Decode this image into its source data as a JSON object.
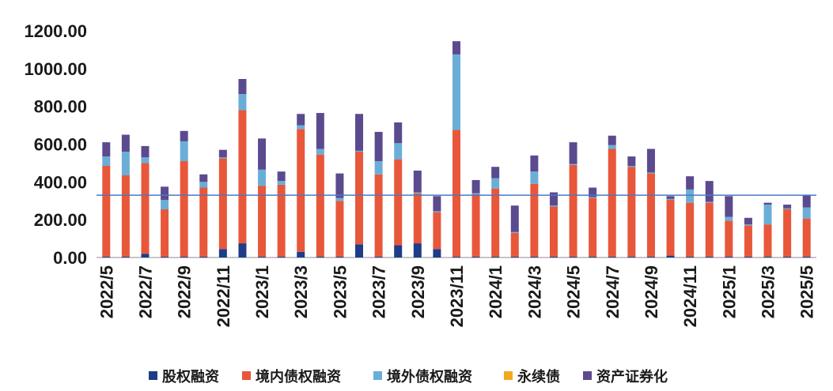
{
  "chart_data": {
    "type": "bar",
    "stacked": true,
    "categories": [
      "2022/5",
      "2022/6",
      "2022/7",
      "2022/8",
      "2022/9",
      "2022/10",
      "2022/11",
      "2022/12",
      "2023/1",
      "2023/2",
      "2023/3",
      "2023/4",
      "2023/5",
      "2023/6",
      "2023/7",
      "2023/8",
      "2023/9",
      "2023/10",
      "2023/11",
      "2023/12",
      "2024/1",
      "2024/2",
      "2024/3",
      "2024/4",
      "2024/5",
      "2024/6",
      "2024/7",
      "2024/8",
      "2024/9",
      "2024/10",
      "2024/11",
      "2024/12",
      "2025/1",
      "2025/2",
      "2025/3",
      "2025/4",
      "2025/5"
    ],
    "x_tick_labels": [
      "2022/5",
      "2022/7",
      "2022/9",
      "2022/11",
      "2023/1",
      "2023/3",
      "2023/5",
      "2023/7",
      "2023/9",
      "2023/11",
      "2024/1",
      "2024/3",
      "2024/5",
      "2024/7",
      "2024/9",
      "2024/11",
      "2025/1",
      "2025/3",
      "2025/5"
    ],
    "series": [
      {
        "name": "股权融资",
        "color": "#1f3c88",
        "values": [
          5,
          5,
          20,
          5,
          5,
          5,
          45,
          75,
          5,
          5,
          30,
          5,
          5,
          70,
          5,
          65,
          75,
          45,
          5,
          5,
          5,
          5,
          5,
          5,
          5,
          5,
          5,
          5,
          5,
          10,
          5,
          5,
          5,
          5,
          5,
          5,
          5
        ]
      },
      {
        "name": "境内债权融资",
        "color": "#e8573a",
        "values": [
          480,
          430,
          480,
          250,
          505,
          365,
          480,
          705,
          375,
          380,
          650,
          540,
          295,
          490,
          435,
          455,
          265,
          195,
          670,
          330,
          360,
          125,
          385,
          265,
          485,
          310,
          570,
          475,
          440,
          295,
          285,
          285,
          190,
          165,
          170,
          250,
          200
        ]
      },
      {
        "name": "境外债权融资",
        "color": "#6aaed8",
        "values": [
          50,
          125,
          30,
          50,
          105,
          30,
          5,
          85,
          85,
          20,
          20,
          30,
          15,
          5,
          70,
          85,
          5,
          5,
          400,
          5,
          55,
          5,
          65,
          5,
          5,
          5,
          20,
          5,
          5,
          5,
          70,
          5,
          20,
          5,
          105,
          5,
          60
        ]
      },
      {
        "name": "永续债",
        "color": "#f2a91f",
        "values": [
          0,
          0,
          0,
          0,
          0,
          0,
          0,
          0,
          0,
          0,
          0,
          0,
          0,
          0,
          0,
          0,
          0,
          0,
          0,
          0,
          0,
          0,
          0,
          0,
          0,
          0,
          0,
          0,
          0,
          0,
          0,
          0,
          0,
          0,
          0,
          0,
          0
        ]
      },
      {
        "name": "资产证券化",
        "color": "#5c4a8f",
        "values": [
          75,
          90,
          60,
          70,
          55,
          40,
          40,
          80,
          165,
          50,
          60,
          190,
          130,
          195,
          155,
          110,
          115,
          80,
          70,
          70,
          60,
          140,
          85,
          70,
          115,
          50,
          50,
          50,
          125,
          15,
          70,
          110,
          110,
          35,
          10,
          20,
          65
        ]
      }
    ],
    "reference_line": {
      "value": 330,
      "color": "#4a78c2"
    },
    "ylim": [
      0,
      1200
    ],
    "yticks": [
      "0.00",
      "200.00",
      "400.00",
      "600.00",
      "800.00",
      "1000.00",
      "1200.00"
    ],
    "ytick_values": [
      0,
      200,
      400,
      600,
      800,
      1000,
      1200
    ],
    "grid": false,
    "legend_position": "bottom"
  }
}
